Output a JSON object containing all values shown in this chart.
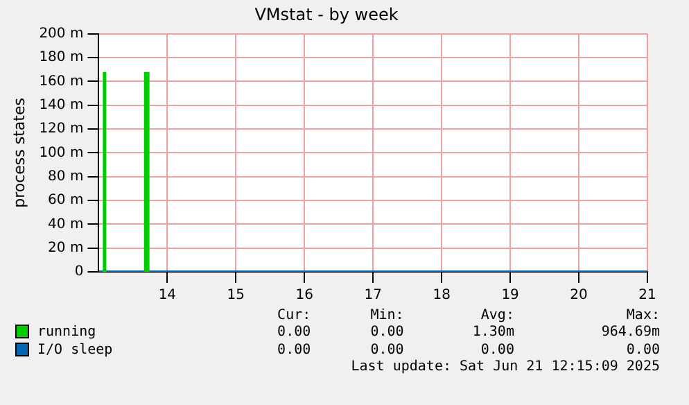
{
  "chart_data": {
    "type": "area",
    "title": "VMstat - by week",
    "ylabel": "process states",
    "xlim": [
      13,
      21
    ],
    "xticks": [
      14,
      15,
      16,
      17,
      18,
      19,
      20,
      21
    ],
    "ylim": [
      0,
      200
    ],
    "yticks": [
      0,
      {
        "value": 20,
        "label": "20 m"
      },
      {
        "value": 40,
        "label": "40 m"
      },
      {
        "value": 60,
        "label": "60 m"
      },
      {
        "value": 80,
        "label": "80 m"
      },
      {
        "value": 100,
        "label": "100 m"
      },
      {
        "value": 120,
        "label": "120 m"
      },
      {
        "value": 140,
        "label": "140 m"
      },
      {
        "value": 160,
        "label": "160 m"
      },
      {
        "value": 180,
        "label": "180 m"
      },
      {
        "value": 200,
        "label": "200 m"
      }
    ],
    "grid": true,
    "legend": "bottom left",
    "series": [
      {
        "name": "running",
        "type": "area",
        "color": "#00cc00",
        "x": [
          13,
          13.06,
          13.06,
          13.11,
          13.11,
          13.66,
          13.66,
          13.74,
          13.74,
          21
        ],
        "values": [
          0,
          0,
          168,
          168,
          0,
          0,
          168,
          168,
          0,
          0
        ]
      },
      {
        "name": "I/O sleep",
        "type": "line",
        "color": "#0066b3",
        "x": [
          13,
          21
        ],
        "values": [
          0,
          0
        ]
      }
    ],
    "annotations": [
      "Cur:",
      "Min:",
      "Avg:",
      "Max:",
      "0.00",
      "0.00",
      "1.30m",
      "964.69m",
      "0.00",
      "0.00",
      "0.00",
      "0.00",
      "Last update: Sat Jun 21 12:15:09 2025"
    ]
  }
}
